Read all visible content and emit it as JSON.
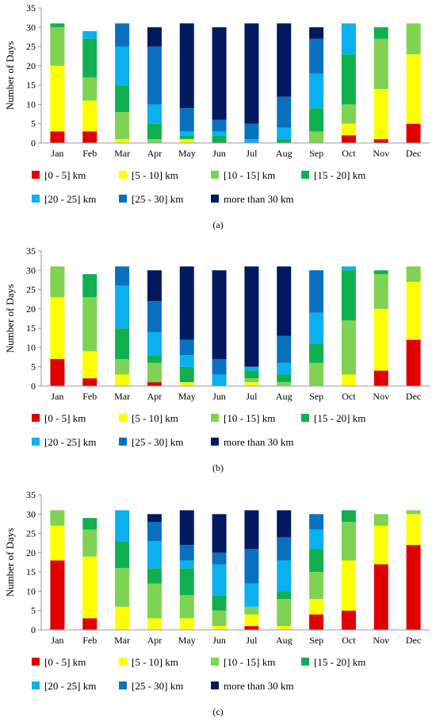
{
  "legend": [
    {
      "label": "[0 - 5] km",
      "color": "#e00000"
    },
    {
      "label": "[5 - 10] km",
      "color": "#ffff00"
    },
    {
      "label": "[10 - 15] km",
      "color": "#7ed352"
    },
    {
      "label": "[15 - 20] km",
      "color": "#10b050"
    },
    {
      "label": "[20 - 25] km",
      "color": "#0ab0f0"
    },
    {
      "label": "[25 - 30] km",
      "color": "#0a70c0"
    },
    {
      "label": "more than 30 km",
      "color": "#00195f"
    }
  ],
  "chart_data": [
    {
      "type": "bar",
      "stacked": true,
      "caption": "(a)",
      "ylabel": "Number of Days",
      "ylim": [
        0,
        35
      ],
      "yticks": [
        0,
        5,
        10,
        15,
        20,
        25,
        30,
        35
      ],
      "grid": false,
      "legend_position": "bottom",
      "categories": [
        "Jan",
        "Feb",
        "Mar",
        "Apr",
        "May",
        "Jun",
        "Jul",
        "Aug",
        "Sep",
        "Oct",
        "Nov",
        "Dec"
      ],
      "series": [
        {
          "name": "[0 - 5] km",
          "values": [
            3,
            3,
            0,
            0,
            0,
            0,
            0,
            0,
            0,
            2,
            1,
            5
          ]
        },
        {
          "name": "[5 - 10] km",
          "values": [
            17,
            8,
            1,
            0,
            1,
            0,
            0,
            0,
            0,
            3,
            13,
            18
          ]
        },
        {
          "name": "[10 - 15] km",
          "values": [
            10,
            6,
            7,
            1,
            0,
            0,
            0,
            0,
            3,
            5,
            13,
            8
          ]
        },
        {
          "name": "[15 - 20] km",
          "values": [
            1,
            10,
            7,
            4,
            1,
            2,
            0,
            1,
            6,
            13,
            3,
            0
          ]
        },
        {
          "name": "[20 - 25] km",
          "values": [
            0,
            2,
            10,
            5,
            1,
            1,
            1,
            3,
            9,
            8,
            0,
            0
          ]
        },
        {
          "name": "[25 - 30] km",
          "values": [
            0,
            0,
            6,
            15,
            6,
            3,
            4,
            8,
            9,
            0,
            0,
            0
          ]
        },
        {
          "name": "more than 30 km",
          "values": [
            0,
            0,
            0,
            5,
            22,
            24,
            26,
            19,
            3,
            0,
            0,
            0
          ]
        }
      ]
    },
    {
      "type": "bar",
      "stacked": true,
      "caption": "(b)",
      "ylabel": "Number of Days",
      "ylim": [
        0,
        35
      ],
      "yticks": [
        0,
        5,
        10,
        15,
        20,
        25,
        30,
        35
      ],
      "grid": false,
      "legend_position": "bottom",
      "categories": [
        "Jan",
        "Feb",
        "Mar",
        "Apr",
        "May",
        "Jun",
        "Jul",
        "Aug",
        "Sep",
        "Oct",
        "Nov",
        "Dec"
      ],
      "series": [
        {
          "name": "[0 - 5] km",
          "values": [
            7,
            2,
            0,
            1,
            0,
            0,
            0,
            0,
            0,
            0,
            4,
            12
          ]
        },
        {
          "name": "[5 - 10] km",
          "values": [
            16,
            7,
            3,
            0,
            1,
            0,
            1,
            0,
            0,
            3,
            16,
            15
          ]
        },
        {
          "name": "[10 - 15] km",
          "values": [
            8,
            14,
            4,
            5,
            0,
            0,
            1,
            1,
            6,
            14,
            9,
            4
          ]
        },
        {
          "name": "[15 - 20] km",
          "values": [
            0,
            6,
            8,
            2,
            4,
            0,
            2,
            2,
            5,
            13,
            1,
            0
          ]
        },
        {
          "name": "[20 - 25] km",
          "values": [
            0,
            0,
            11,
            6,
            3,
            3,
            1,
            3,
            8,
            1,
            0,
            0
          ]
        },
        {
          "name": "[25 - 30] km",
          "values": [
            0,
            0,
            5,
            8,
            4,
            4,
            0,
            7,
            11,
            0,
            0,
            0
          ]
        },
        {
          "name": "more than 30 km",
          "values": [
            0,
            0,
            0,
            8,
            19,
            23,
            26,
            18,
            0,
            0,
            0,
            0
          ]
        }
      ]
    },
    {
      "type": "bar",
      "stacked": true,
      "caption": "(c)",
      "ylabel": "Number of Days",
      "ylim": [
        0,
        35
      ],
      "yticks": [
        0,
        5,
        10,
        15,
        20,
        25,
        30,
        35
      ],
      "grid": false,
      "legend_position": "bottom",
      "categories": [
        "Jan",
        "Feb",
        "Mar",
        "Apr",
        "May",
        "Jun",
        "Jul",
        "Aug",
        "Sep",
        "Oct",
        "Nov",
        "Dec"
      ],
      "series": [
        {
          "name": "[0 - 5] km",
          "values": [
            18,
            3,
            0,
            0,
            0,
            0,
            1,
            0,
            4,
            5,
            17,
            22
          ]
        },
        {
          "name": "[5 - 10] km",
          "values": [
            9,
            16,
            6,
            3,
            3,
            1,
            3,
            1,
            4,
            13,
            10,
            8
          ]
        },
        {
          "name": "[10 - 15] km",
          "values": [
            4,
            7,
            10,
            9,
            6,
            4,
            2,
            7,
            7,
            10,
            3,
            1
          ]
        },
        {
          "name": "[15 - 20] km",
          "values": [
            0,
            3,
            7,
            4,
            7,
            4,
            0,
            2,
            6,
            3,
            0,
            0
          ]
        },
        {
          "name": "[20 - 25] km",
          "values": [
            0,
            0,
            8,
            7,
            2,
            8,
            6,
            8,
            5,
            0,
            0,
            0
          ]
        },
        {
          "name": "[25 - 30] km",
          "values": [
            0,
            0,
            0,
            5,
            4,
            3,
            9,
            6,
            4,
            0,
            0,
            0
          ]
        },
        {
          "name": "more than 30 km",
          "values": [
            0,
            0,
            0,
            2,
            9,
            10,
            10,
            7,
            0,
            0,
            0,
            0
          ]
        }
      ]
    }
  ]
}
